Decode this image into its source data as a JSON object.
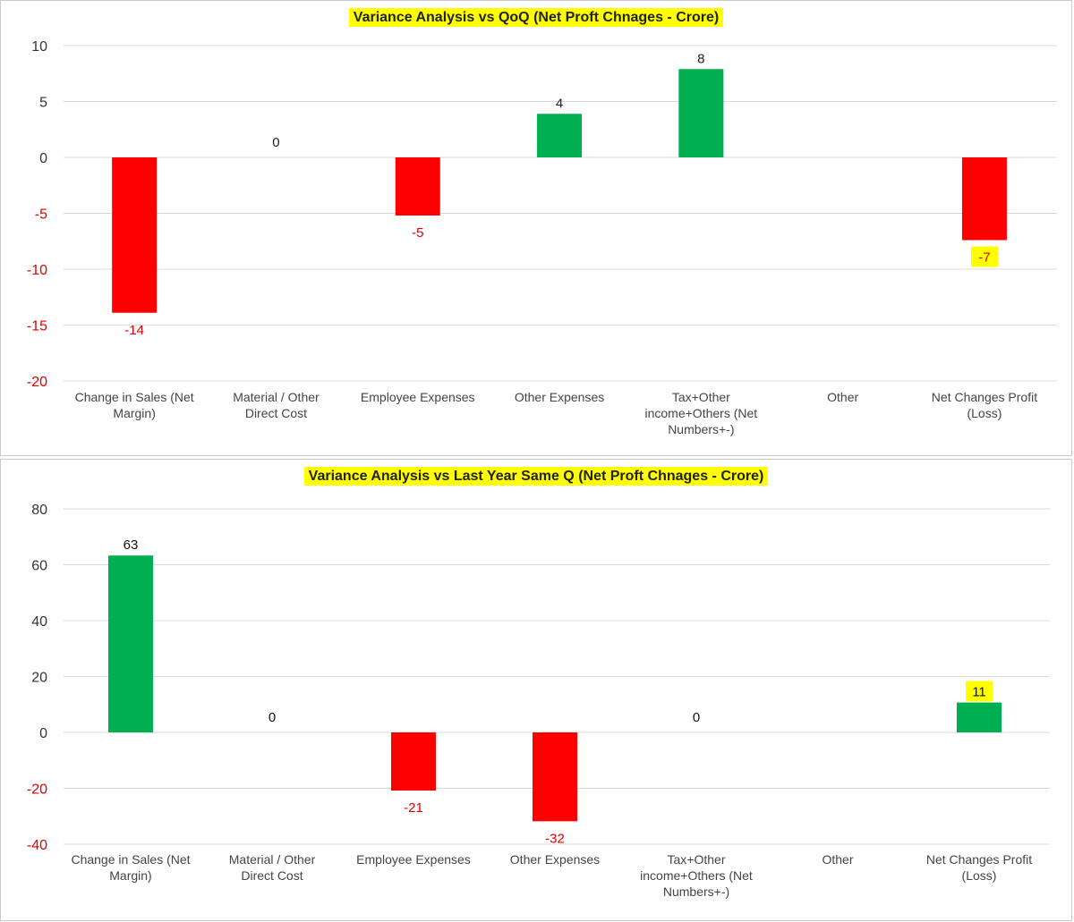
{
  "chart_data": [
    {
      "type": "bar",
      "title": "Variance Analysis vs QoQ (Net Proft Chnages - Crore)",
      "categories": [
        "Change in Sales (Net Margin)",
        "Material / Other Direct Cost",
        "Employee Expenses",
        "Other Expenses",
        "Tax+Other income+Others (Net Numbers+-)",
        "Other",
        "Net Changes Profit (Loss)"
      ],
      "values": [
        -13.9,
        0,
        -5.2,
        3.9,
        7.9,
        null,
        -7.4
      ],
      "data_labels": [
        "-14",
        "0",
        "-5",
        "4",
        "8",
        "",
        "-7"
      ],
      "highlighted_label_index": 6,
      "ylim": [
        -20,
        10
      ],
      "yticks": [
        10,
        5,
        0,
        -5,
        -10,
        -15,
        -20
      ],
      "grid": true,
      "colors": {
        "positive": "#00b050",
        "negative": "#ff0000",
        "highlight": "#ffff00",
        "label_negative": "#e00000",
        "label_positive": "#222222"
      }
    },
    {
      "type": "bar",
      "title": "Variance Analysis vs Last Year Same Q (Net Proft Chnages - Crore)",
      "categories": [
        "Change in Sales (Net Margin)",
        "Material / Other Direct Cost",
        "Employee Expenses",
        "Other Expenses",
        "Tax+Other income+Others (Net Numbers+-)",
        "Other",
        "Net Changes Profit (Loss)"
      ],
      "values": [
        63.3,
        0,
        -20.8,
        -31.8,
        0,
        null,
        10.7
      ],
      "data_labels": [
        "63",
        "0",
        "-21",
        "-32",
        "0",
        "",
        "11"
      ],
      "highlighted_label_index": 6,
      "ylim": [
        -40,
        80
      ],
      "yticks": [
        80,
        60,
        40,
        20,
        0,
        -20,
        -40
      ],
      "grid": true,
      "colors": {
        "positive": "#00b050",
        "negative": "#ff0000",
        "highlight": "#ffff00",
        "label_negative": "#e00000",
        "label_positive": "#111111"
      }
    }
  ]
}
